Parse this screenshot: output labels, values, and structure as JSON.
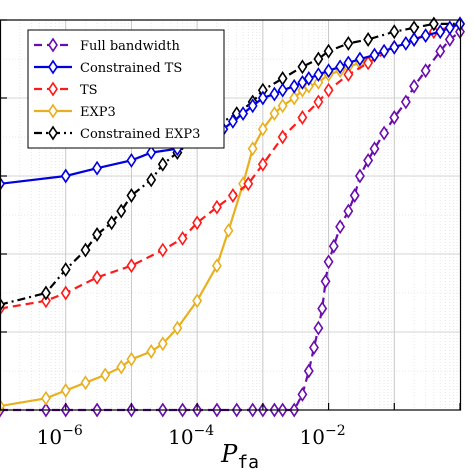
{
  "chart_data": {
    "type": "line",
    "title": "",
    "xlabel": "P_fa",
    "ylabel": "",
    "xscale": "log",
    "xlim": [
      1e-07,
      1
    ],
    "ylim": [
      0,
      1
    ],
    "grid": true,
    "legend_position": "top-left",
    "x_tick_labels": [
      "10^-6",
      "10^-4",
      "10^-2"
    ],
    "colors": {
      "Full bandwidth": "#6a0dad",
      "Constrained TS": "#0000e0",
      "TS": "#ff1a1a",
      "EXP3": "#e8b020",
      "Constrained EXP3": "#000000"
    },
    "series": [
      {
        "name": "Full bandwidth",
        "style": "dashed",
        "x": [
          1e-07,
          5e-07,
          1e-06,
          3e-06,
          1e-05,
          3e-05,
          6e-05,
          0.0001,
          0.0002,
          0.0004,
          0.0007,
          0.001,
          0.0015,
          0.002,
          0.003,
          0.004,
          0.005,
          0.006,
          0.007,
          0.008,
          0.009,
          0.01,
          0.012,
          0.015,
          0.02,
          0.025,
          0.03,
          0.04,
          0.05,
          0.07,
          0.1,
          0.15,
          0.2,
          0.3,
          0.5,
          0.7,
          1
        ],
        "y": [
          0.0,
          0.0,
          0.0,
          0.0,
          0.0,
          0.0,
          0.0,
          0.0,
          0.0,
          0.0,
          0.0,
          0.0,
          0.0,
          0.0,
          0.0,
          0.04,
          0.1,
          0.16,
          0.21,
          0.26,
          0.33,
          0.38,
          0.42,
          0.47,
          0.51,
          0.55,
          0.6,
          0.64,
          0.67,
          0.71,
          0.75,
          0.79,
          0.83,
          0.87,
          0.92,
          0.95,
          0.97
        ]
      },
      {
        "name": "Constrained TS",
        "style": "solid",
        "x": [
          1e-07,
          1e-06,
          3e-06,
          1e-05,
          2e-05,
          5e-05,
          0.0001,
          0.00017,
          0.00025,
          0.00035,
          0.0005,
          0.0007,
          0.001,
          0.0015,
          0.002,
          0.003,
          0.004,
          0.005,
          0.007,
          0.01,
          0.015,
          0.02,
          0.03,
          0.05,
          0.07,
          0.1,
          0.15,
          0.2,
          0.3,
          0.5,
          0.7,
          1
        ],
        "y": [
          0.58,
          0.6,
          0.62,
          0.64,
          0.66,
          0.67,
          0.69,
          0.71,
          0.72,
          0.74,
          0.76,
          0.78,
          0.8,
          0.81,
          0.82,
          0.83,
          0.84,
          0.85,
          0.86,
          0.87,
          0.88,
          0.89,
          0.9,
          0.91,
          0.92,
          0.93,
          0.94,
          0.95,
          0.96,
          0.97,
          0.98,
          0.99
        ]
      },
      {
        "name": "TS",
        "style": "dashed",
        "x": [
          1e-07,
          5e-07,
          1e-06,
          3e-06,
          1e-05,
          3e-05,
          6e-05,
          0.0001,
          0.0002,
          0.00035,
          0.0006,
          0.001,
          0.002,
          0.004,
          0.007,
          0.01,
          0.02,
          0.04,
          0.1,
          0.2,
          0.4,
          1
        ],
        "y": [
          0.26,
          0.28,
          0.3,
          0.34,
          0.37,
          0.41,
          0.44,
          0.48,
          0.52,
          0.55,
          0.58,
          0.63,
          0.7,
          0.75,
          0.79,
          0.82,
          0.86,
          0.89,
          0.93,
          0.95,
          0.97,
          0.99
        ]
      },
      {
        "name": "EXP3",
        "style": "solid",
        "x": [
          1e-07,
          5e-07,
          1e-06,
          2e-06,
          4e-06,
          7e-06,
          1e-05,
          2e-05,
          3e-05,
          5e-05,
          0.0001,
          0.0002,
          0.0003,
          0.0005,
          0.0007,
          0.001,
          0.0015,
          0.002,
          0.003,
          0.004,
          0.005,
          0.007,
          0.01,
          0.015,
          0.02,
          0.03,
          0.05,
          0.07,
          0.1,
          0.15,
          0.2,
          0.3,
          0.5,
          0.7,
          1
        ],
        "y": [
          0.01,
          0.03,
          0.05,
          0.07,
          0.09,
          0.11,
          0.13,
          0.15,
          0.17,
          0.21,
          0.28,
          0.37,
          0.46,
          0.58,
          0.67,
          0.72,
          0.76,
          0.78,
          0.8,
          0.82,
          0.83,
          0.84,
          0.86,
          0.87,
          0.88,
          0.89,
          0.91,
          0.92,
          0.93,
          0.94,
          0.95,
          0.96,
          0.97,
          0.98,
          0.99
        ]
      },
      {
        "name": "Constrained EXP3",
        "style": "dashdot",
        "x": [
          1e-07,
          5e-07,
          1e-06,
          2e-06,
          3e-06,
          5e-06,
          7e-06,
          1e-05,
          2e-05,
          3e-05,
          5e-05,
          0.0001,
          0.0002,
          0.0004,
          0.0007,
          0.001,
          0.002,
          0.004,
          0.007,
          0.01,
          0.02,
          0.04,
          0.1,
          0.2,
          0.4,
          1
        ],
        "y": [
          0.27,
          0.3,
          0.36,
          0.41,
          0.45,
          0.48,
          0.51,
          0.55,
          0.59,
          0.63,
          0.66,
          0.7,
          0.73,
          0.76,
          0.79,
          0.82,
          0.85,
          0.88,
          0.9,
          0.92,
          0.94,
          0.95,
          0.97,
          0.98,
          0.99,
          0.99
        ]
      }
    ]
  }
}
